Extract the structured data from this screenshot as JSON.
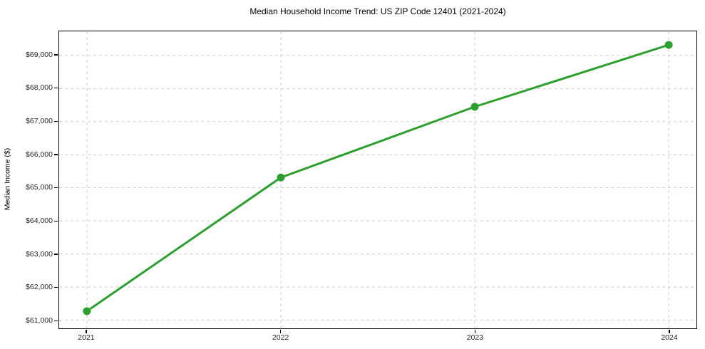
{
  "chart_data": {
    "type": "line",
    "title": "Median Household Income Trend: US ZIP Code 12401 (2021-2024)",
    "xlabel": "",
    "ylabel": "Median Income ($)",
    "categories": [
      "2021",
      "2022",
      "2023",
      "2024"
    ],
    "values": [
      61270,
      65310,
      67450,
      69320
    ],
    "y_tick_values": [
      61000,
      62000,
      63000,
      64000,
      65000,
      66000,
      67000,
      68000,
      69000
    ],
    "y_tick_labels": [
      "$61,000",
      "$62,000",
      "$63,000",
      "$64,000",
      "$65,000",
      "$66,000",
      "$67,000",
      "$68,000",
      "$69,000"
    ],
    "ylim": [
      60750,
      69730
    ],
    "grid": {
      "style": "dashed",
      "color": "#cccccc",
      "horizontal": true,
      "vertical": true
    },
    "legend": "none",
    "line_color": "#2ca02c",
    "marker": "circle"
  }
}
